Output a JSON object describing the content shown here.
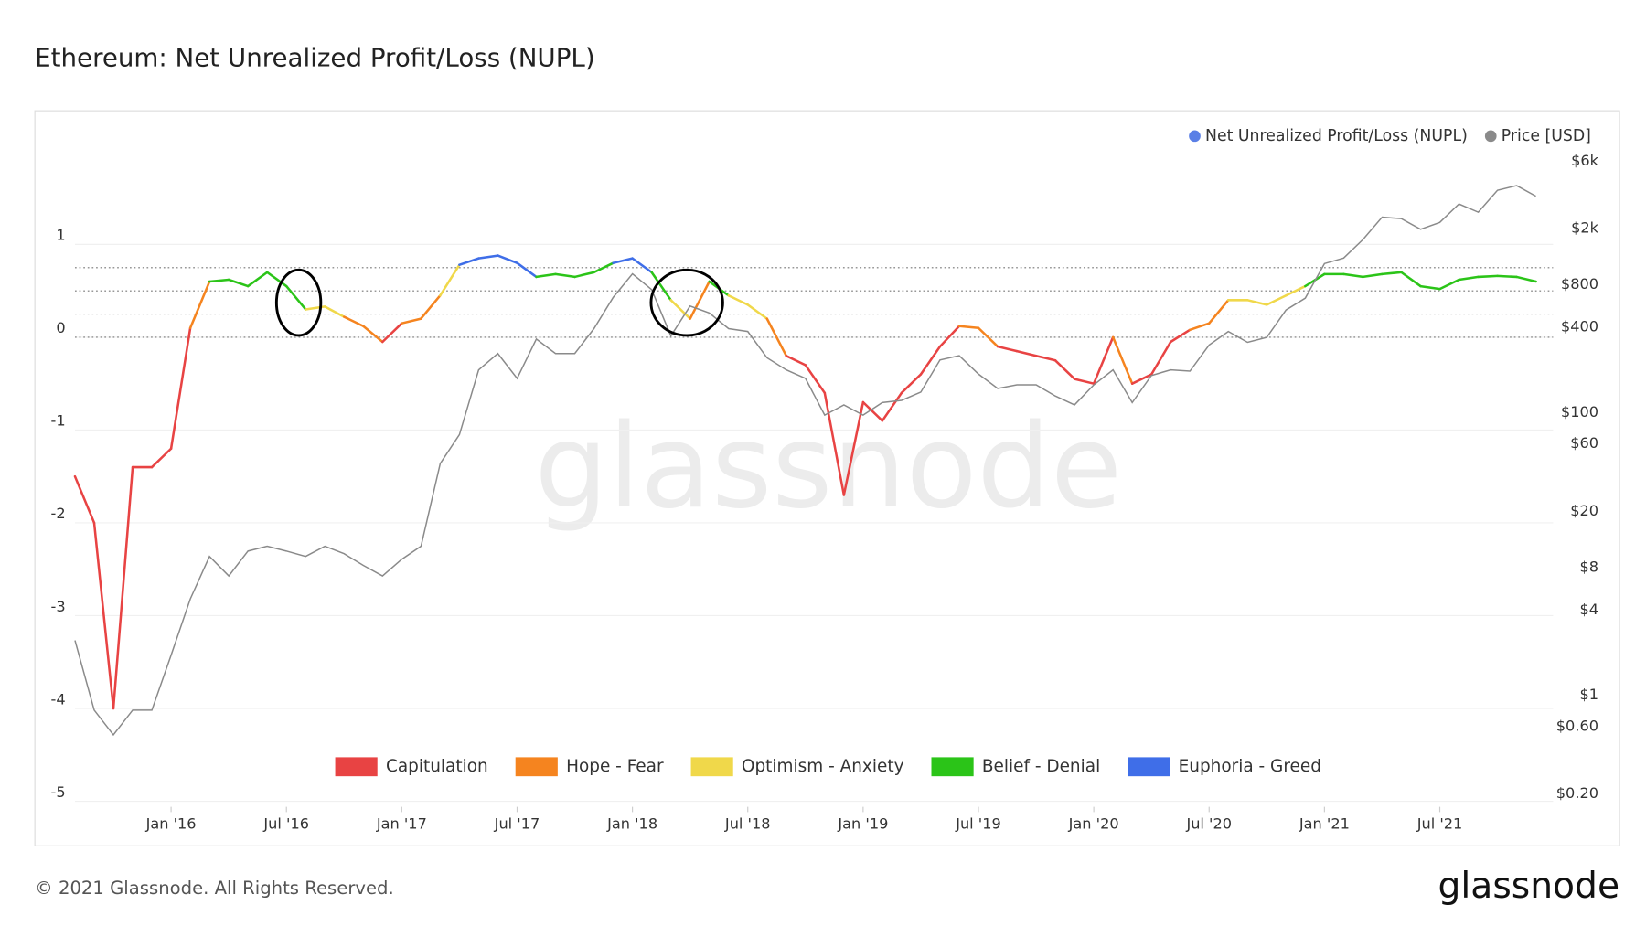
{
  "chart_data": {
    "type": "line",
    "title": "Ethereum: Net Unrealized Profit/Loss (NUPL)",
    "watermark": "glassnode",
    "x": [
      "2015-08",
      "2015-09",
      "2015-10",
      "2015-11",
      "2015-12",
      "2016-01",
      "2016-02",
      "2016-03",
      "2016-04",
      "2016-05",
      "2016-06",
      "2016-07",
      "2016-08",
      "2016-09",
      "2016-10",
      "2016-11",
      "2016-12",
      "2017-01",
      "2017-02",
      "2017-03",
      "2017-04",
      "2017-05",
      "2017-06",
      "2017-07",
      "2017-08",
      "2017-09",
      "2017-10",
      "2017-11",
      "2017-12",
      "2018-01",
      "2018-02",
      "2018-03",
      "2018-04",
      "2018-05",
      "2018-06",
      "2018-07",
      "2018-08",
      "2018-09",
      "2018-10",
      "2018-11",
      "2018-12",
      "2019-01",
      "2019-02",
      "2019-03",
      "2019-04",
      "2019-05",
      "2019-06",
      "2019-07",
      "2019-08",
      "2019-09",
      "2019-10",
      "2019-11",
      "2019-12",
      "2020-01",
      "2020-02",
      "2020-03",
      "2020-04",
      "2020-05",
      "2020-06",
      "2020-07",
      "2020-08",
      "2020-09",
      "2020-10",
      "2020-11",
      "2020-12",
      "2021-01",
      "2021-02",
      "2021-03",
      "2021-04",
      "2021-05",
      "2021-06",
      "2021-07",
      "2021-08",
      "2021-09",
      "2021-10",
      "2021-11",
      "2021-12"
    ],
    "series": [
      {
        "name": "Net Unrealized Profit/Loss (NUPL)",
        "color": "#5a7fe6",
        "values": [
          -1.5,
          -2.0,
          -4.0,
          -1.4,
          -1.4,
          -1.2,
          0.1,
          0.6,
          0.62,
          0.55,
          0.7,
          0.55,
          0.3,
          0.33,
          0.22,
          0.12,
          -0.05,
          0.15,
          0.2,
          0.45,
          0.78,
          0.85,
          0.88,
          0.8,
          0.65,
          0.68,
          0.65,
          0.7,
          0.8,
          0.85,
          0.7,
          0.4,
          0.2,
          0.6,
          0.45,
          0.35,
          0.2,
          -0.2,
          -0.3,
          -0.6,
          -1.7,
          -0.7,
          -0.9,
          -0.6,
          -0.4,
          -0.1,
          0.12,
          0.1,
          -0.1,
          -0.15,
          -0.2,
          -0.25,
          -0.45,
          -0.5,
          0.0,
          -0.5,
          -0.4,
          -0.05,
          0.08,
          0.15,
          0.4,
          0.4,
          0.35,
          0.45,
          0.55,
          0.68,
          0.68,
          0.65,
          0.68,
          0.7,
          0.55,
          0.52,
          0.62,
          0.65,
          0.66,
          0.65,
          0.6
        ]
      },
      {
        "name": "Price [USD]",
        "color": "#8a8a8a",
        "axis": "y2",
        "values": [
          2.8,
          0.9,
          0.6,
          0.9,
          0.9,
          2.2,
          5.5,
          11,
          8,
          12,
          13,
          12,
          11,
          13,
          11.5,
          9.5,
          8,
          10.5,
          13,
          50,
          80,
          230,
          300,
          200,
          380,
          300,
          300,
          450,
          750,
          1100,
          850,
          400,
          650,
          580,
          450,
          430,
          280,
          230,
          200,
          110,
          130,
          110,
          135,
          140,
          160,
          270,
          290,
          215,
          170,
          180,
          180,
          150,
          130,
          180,
          230,
          135,
          210,
          230,
          225,
          345,
          430,
          360,
          390,
          610,
          740,
          1300,
          1420,
          1920,
          2770,
          2700,
          2270,
          2540,
          3430,
          3000,
          4290,
          4630,
          3900
        ]
      }
    ],
    "ylim": [
      -5.06,
      2.02
    ],
    "yticks": [
      -5,
      -4,
      -3,
      -2,
      -1,
      0,
      1
    ],
    "y2lim": [
      0.186,
      8300
    ],
    "y2log": true,
    "y2ticks": [
      {
        "value": 0.2,
        "label": "$0.20"
      },
      {
        "value": 0.6,
        "label": "$0.60"
      },
      {
        "value": 1,
        "label": "$1"
      },
      {
        "value": 4,
        "label": "$4"
      },
      {
        "value": 8,
        "label": "$8"
      },
      {
        "value": 20,
        "label": "$20"
      },
      {
        "value": 60,
        "label": "$60"
      },
      {
        "value": 100,
        "label": "$100"
      },
      {
        "value": 400,
        "label": "$400"
      },
      {
        "value": 800,
        "label": "$800"
      },
      {
        "value": 2000,
        "label": "$2k"
      },
      {
        "value": 6000,
        "label": "$6k"
      }
    ],
    "xticks": [
      {
        "value": "2016-01",
        "label": "Jan '16"
      },
      {
        "value": "2016-07",
        "label": "Jul '16"
      },
      {
        "value": "2017-01",
        "label": "Jan '17"
      },
      {
        "value": "2017-07",
        "label": "Jul '17"
      },
      {
        "value": "2018-01",
        "label": "Jan '18"
      },
      {
        "value": "2018-07",
        "label": "Jul '18"
      },
      {
        "value": "2019-01",
        "label": "Jan '19"
      },
      {
        "value": "2019-07",
        "label": "Jul '19"
      },
      {
        "value": "2020-01",
        "label": "Jan '20"
      },
      {
        "value": "2020-07",
        "label": "Jul '20"
      },
      {
        "value": "2021-01",
        "label": "Jan '21"
      },
      {
        "value": "2021-07",
        "label": "Jul '21"
      }
    ],
    "zones": [
      {
        "name": "Capitulation",
        "color": "#e84343"
      },
      {
        "name": "Hope - Fear",
        "color": "#f5841f"
      },
      {
        "name": "Optimism - Anxiety",
        "color": "#f0d84a"
      },
      {
        "name": "Belief - Denial",
        "color": "#2bc418"
      },
      {
        "name": "Euphoria - Greed",
        "color": "#3f6ee8"
      }
    ],
    "zone_bounds": [
      0,
      0.25,
      0.5,
      0.75
    ],
    "grid": true,
    "legend": "top-right"
  },
  "footer": "© 2021 Glassnode. All Rights Reserved.",
  "logo": "glassnode"
}
